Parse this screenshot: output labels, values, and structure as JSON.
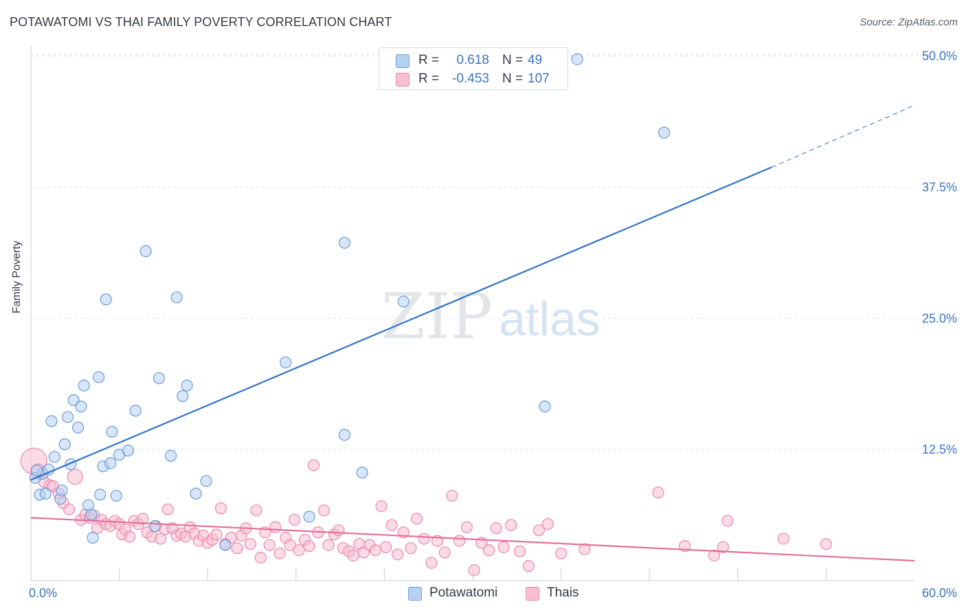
{
  "title": "POTAWATOMI VS THAI FAMILY POVERTY CORRELATION CHART",
  "source": "Source: ZipAtlas.com",
  "watermark": {
    "zip": "ZIP",
    "atlas": "atlas"
  },
  "legend": {
    "rows": [
      {
        "r_label": "R =",
        "r_value": "0.618",
        "n_label": "N =",
        "n_value": "49"
      },
      {
        "r_label": "R =",
        "r_value": "-0.453",
        "n_label": "N =",
        "n_value": "107"
      }
    ]
  },
  "bottom_legend": {
    "series1": "Potawatomi",
    "series2": "Thais"
  },
  "colors": {
    "potawatomi_fill": "#b7d1f2",
    "potawatomi_stroke": "#6b9bd8",
    "potawatomi_line": "#2f72cc",
    "thais_fill": "#f7bfd2",
    "thais_stroke": "#ec86a9",
    "thais_line": "#e46f99",
    "tick_label": "#3b73c4",
    "grid": "#dde1e6"
  },
  "chart_data": {
    "type": "scatter",
    "title": "POTAWATOMI VS THAI FAMILY POVERTY CORRELATION CHART",
    "xlabel": "",
    "ylabel": "Family Poverty",
    "xlim": [
      0,
      60
    ],
    "ylim": [
      0,
      52
    ],
    "x_tick_labels": [
      {
        "value": 0,
        "label": "0.0%"
      },
      {
        "value": 60,
        "label": "60.0%"
      }
    ],
    "y_tick_labels": [
      {
        "value": 12.5,
        "label": "12.5%"
      },
      {
        "value": 25,
        "label": "25.0%"
      },
      {
        "value": 37.5,
        "label": "37.5%"
      },
      {
        "value": 50,
        "label": "50.0%"
      }
    ],
    "x_minor_ticks": [
      6,
      12,
      18,
      24,
      30,
      36,
      42,
      48,
      54
    ],
    "grid": true,
    "legend_position": "top-center",
    "series": [
      {
        "name": "Potawatomi",
        "r": 0.618,
        "n": 49,
        "trend": {
          "x0": 0,
          "y0": 9.6,
          "x1": 50.3,
          "y1": 39.4,
          "dashed_to_x": 60,
          "dashed_to_y": 45.3
        },
        "points": [
          {
            "x": 0.3,
            "y": 9.8
          },
          {
            "x": 0.6,
            "y": 8.2
          },
          {
            "x": 0.8,
            "y": 10.2
          },
          {
            "x": 1.0,
            "y": 8.3
          },
          {
            "x": 1.2,
            "y": 10.6
          },
          {
            "x": 1.4,
            "y": 15.2
          },
          {
            "x": 1.6,
            "y": 11.8
          },
          {
            "x": 2.0,
            "y": 7.8
          },
          {
            "x": 2.1,
            "y": 8.6
          },
          {
            "x": 2.3,
            "y": 13.0
          },
          {
            "x": 2.5,
            "y": 15.6
          },
          {
            "x": 2.7,
            "y": 11.1
          },
          {
            "x": 2.9,
            "y": 17.2
          },
          {
            "x": 3.2,
            "y": 14.6
          },
          {
            "x": 3.4,
            "y": 16.6
          },
          {
            "x": 3.6,
            "y": 18.6
          },
          {
            "x": 3.9,
            "y": 7.2
          },
          {
            "x": 4.1,
            "y": 6.3
          },
          {
            "x": 4.2,
            "y": 4.1
          },
          {
            "x": 4.6,
            "y": 19.4
          },
          {
            "x": 4.7,
            "y": 8.2
          },
          {
            "x": 4.9,
            "y": 10.9
          },
          {
            "x": 5.1,
            "y": 26.8
          },
          {
            "x": 5.4,
            "y": 11.2
          },
          {
            "x": 5.5,
            "y": 14.2
          },
          {
            "x": 5.8,
            "y": 8.1
          },
          {
            "x": 6.0,
            "y": 12.0
          },
          {
            "x": 6.6,
            "y": 12.4
          },
          {
            "x": 7.1,
            "y": 16.2
          },
          {
            "x": 7.8,
            "y": 31.4
          },
          {
            "x": 8.4,
            "y": 5.2
          },
          {
            "x": 8.7,
            "y": 19.3
          },
          {
            "x": 9.5,
            "y": 11.9
          },
          {
            "x": 9.9,
            "y": 27.0
          },
          {
            "x": 10.3,
            "y": 17.6
          },
          {
            "x": 10.6,
            "y": 18.6
          },
          {
            "x": 11.2,
            "y": 8.3
          },
          {
            "x": 11.9,
            "y": 9.5
          },
          {
            "x": 13.2,
            "y": 3.4
          },
          {
            "x": 17.3,
            "y": 20.8
          },
          {
            "x": 18.9,
            "y": 6.1
          },
          {
            "x": 21.3,
            "y": 32.2
          },
          {
            "x": 21.3,
            "y": 13.9
          },
          {
            "x": 22.5,
            "y": 10.3
          },
          {
            "x": 25.3,
            "y": 26.6
          },
          {
            "x": 34.9,
            "y": 16.6
          },
          {
            "x": 37.1,
            "y": 49.7
          },
          {
            "x": 43.0,
            "y": 42.7
          },
          {
            "x": 0.4,
            "y": 10.5
          }
        ]
      },
      {
        "name": "Thais",
        "r": -0.453,
        "n": 107,
        "trend": {
          "x0": 0,
          "y0": 6.0,
          "x1": 60,
          "y1": 1.9
        },
        "points": [
          {
            "x": 0.2,
            "y": 11.4
          },
          {
            "x": 0.5,
            "y": 10.4
          },
          {
            "x": 0.9,
            "y": 9.4
          },
          {
            "x": 1.3,
            "y": 9.1
          },
          {
            "x": 1.5,
            "y": 9.0
          },
          {
            "x": 1.9,
            "y": 8.3
          },
          {
            "x": 2.2,
            "y": 7.4
          },
          {
            "x": 2.6,
            "y": 6.8
          },
          {
            "x": 3.0,
            "y": 9.9
          },
          {
            "x": 3.4,
            "y": 5.8
          },
          {
            "x": 3.7,
            "y": 6.3
          },
          {
            "x": 4.0,
            "y": 6.0
          },
          {
            "x": 4.3,
            "y": 6.2
          },
          {
            "x": 4.5,
            "y": 5.0
          },
          {
            "x": 4.8,
            "y": 5.8
          },
          {
            "x": 5.1,
            "y": 5.4
          },
          {
            "x": 5.4,
            "y": 5.2
          },
          {
            "x": 5.7,
            "y": 5.7
          },
          {
            "x": 6.0,
            "y": 5.4
          },
          {
            "x": 6.2,
            "y": 4.4
          },
          {
            "x": 6.4,
            "y": 4.9
          },
          {
            "x": 6.7,
            "y": 4.2
          },
          {
            "x": 7.0,
            "y": 5.7
          },
          {
            "x": 7.3,
            "y": 5.4
          },
          {
            "x": 7.6,
            "y": 5.9
          },
          {
            "x": 7.9,
            "y": 4.6
          },
          {
            "x": 8.2,
            "y": 4.2
          },
          {
            "x": 8.5,
            "y": 5.2
          },
          {
            "x": 8.8,
            "y": 4.0
          },
          {
            "x": 9.1,
            "y": 4.9
          },
          {
            "x": 9.3,
            "y": 6.8
          },
          {
            "x": 9.6,
            "y": 5.0
          },
          {
            "x": 9.9,
            "y": 4.3
          },
          {
            "x": 10.2,
            "y": 4.5
          },
          {
            "x": 10.5,
            "y": 4.2
          },
          {
            "x": 10.8,
            "y": 5.1
          },
          {
            "x": 11.1,
            "y": 4.5
          },
          {
            "x": 11.4,
            "y": 3.8
          },
          {
            "x": 11.7,
            "y": 4.3
          },
          {
            "x": 12.0,
            "y": 3.6
          },
          {
            "x": 12.3,
            "y": 3.9
          },
          {
            "x": 12.6,
            "y": 4.4
          },
          {
            "x": 12.9,
            "y": 6.9
          },
          {
            "x": 13.2,
            "y": 3.5
          },
          {
            "x": 13.6,
            "y": 4.1
          },
          {
            "x": 14.0,
            "y": 3.1
          },
          {
            "x": 14.3,
            "y": 4.3
          },
          {
            "x": 14.6,
            "y": 5.0
          },
          {
            "x": 14.9,
            "y": 3.5
          },
          {
            "x": 15.3,
            "y": 6.7
          },
          {
            "x": 15.6,
            "y": 2.2
          },
          {
            "x": 15.9,
            "y": 4.6
          },
          {
            "x": 16.2,
            "y": 3.4
          },
          {
            "x": 16.6,
            "y": 5.1
          },
          {
            "x": 16.9,
            "y": 2.6
          },
          {
            "x": 17.3,
            "y": 4.1
          },
          {
            "x": 17.6,
            "y": 3.4
          },
          {
            "x": 17.9,
            "y": 5.8
          },
          {
            "x": 18.2,
            "y": 2.9
          },
          {
            "x": 18.6,
            "y": 3.9
          },
          {
            "x": 18.9,
            "y": 3.3
          },
          {
            "x": 19.2,
            "y": 11.0
          },
          {
            "x": 19.5,
            "y": 4.6
          },
          {
            "x": 19.9,
            "y": 6.7
          },
          {
            "x": 20.2,
            "y": 3.4
          },
          {
            "x": 20.6,
            "y": 4.4
          },
          {
            "x": 20.9,
            "y": 4.8
          },
          {
            "x": 21.2,
            "y": 3.1
          },
          {
            "x": 21.6,
            "y": 2.8
          },
          {
            "x": 21.9,
            "y": 2.4
          },
          {
            "x": 22.3,
            "y": 3.5
          },
          {
            "x": 22.6,
            "y": 2.7
          },
          {
            "x": 23.0,
            "y": 3.4
          },
          {
            "x": 23.4,
            "y": 2.9
          },
          {
            "x": 23.8,
            "y": 7.1
          },
          {
            "x": 24.1,
            "y": 3.2
          },
          {
            "x": 24.5,
            "y": 5.3
          },
          {
            "x": 24.9,
            "y": 2.5
          },
          {
            "x": 25.3,
            "y": 4.6
          },
          {
            "x": 25.8,
            "y": 3.1
          },
          {
            "x": 26.2,
            "y": 5.9
          },
          {
            "x": 26.7,
            "y": 4.0
          },
          {
            "x": 27.2,
            "y": 1.7
          },
          {
            "x": 27.6,
            "y": 3.8
          },
          {
            "x": 28.1,
            "y": 2.7
          },
          {
            "x": 28.6,
            "y": 8.1
          },
          {
            "x": 29.1,
            "y": 3.8
          },
          {
            "x": 29.6,
            "y": 5.1
          },
          {
            "x": 30.1,
            "y": 1.0
          },
          {
            "x": 30.6,
            "y": 3.6
          },
          {
            "x": 31.1,
            "y": 2.9
          },
          {
            "x": 31.6,
            "y": 5.0
          },
          {
            "x": 32.1,
            "y": 3.2
          },
          {
            "x": 32.6,
            "y": 5.3
          },
          {
            "x": 33.2,
            "y": 2.8
          },
          {
            "x": 33.8,
            "y": 1.4
          },
          {
            "x": 34.5,
            "y": 4.8
          },
          {
            "x": 35.1,
            "y": 5.4
          },
          {
            "x": 36.0,
            "y": 2.6
          },
          {
            "x": 42.6,
            "y": 8.4
          },
          {
            "x": 44.4,
            "y": 3.3
          },
          {
            "x": 46.4,
            "y": 2.4
          },
          {
            "x": 47.3,
            "y": 5.7
          },
          {
            "x": 51.1,
            "y": 4.0
          },
          {
            "x": 54.0,
            "y": 3.5
          },
          {
            "x": 47.0,
            "y": 3.2
          },
          {
            "x": 37.6,
            "y": 3.0
          }
        ]
      }
    ]
  }
}
